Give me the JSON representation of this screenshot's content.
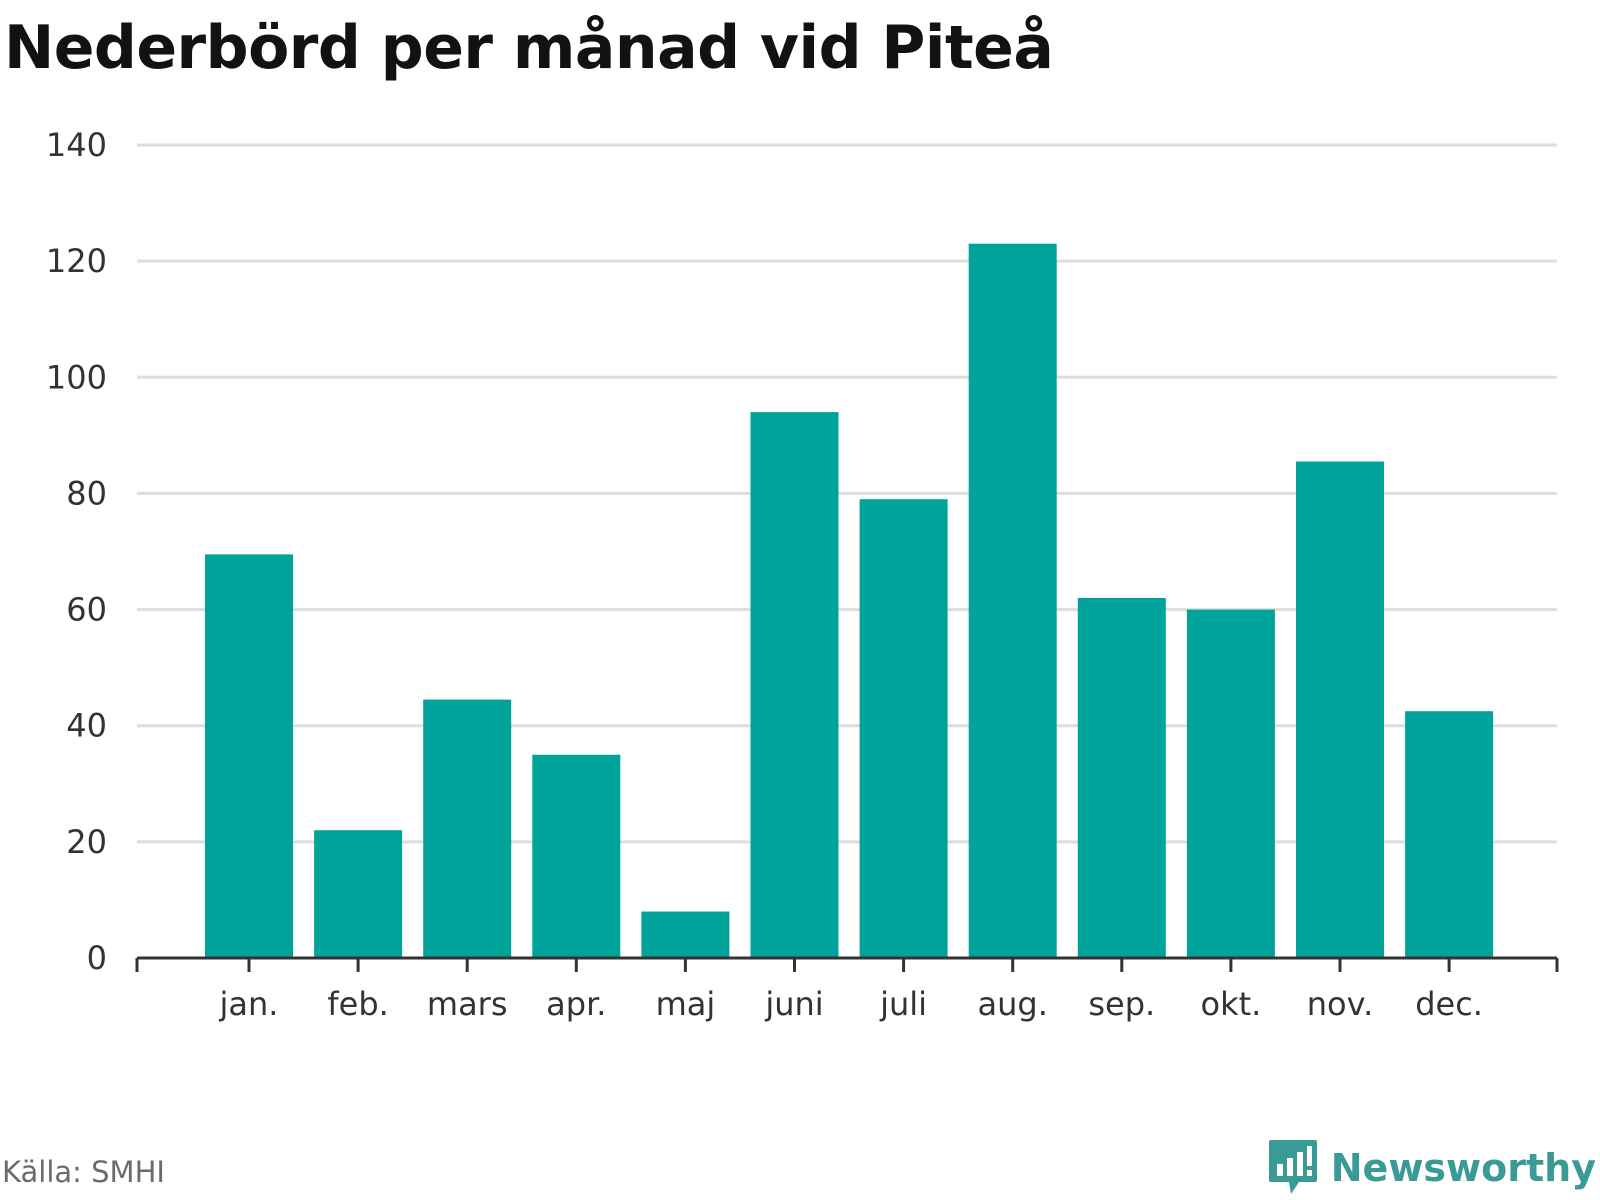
{
  "title": "Nederbörd per månad vid Piteå",
  "source": "Källa: SMHI",
  "brand": {
    "name": "Newsworthy",
    "icon": "newsworthy-logo-icon",
    "color": "#3a9a96"
  },
  "colors": {
    "bar": "#00a39a",
    "grid": "#dddddd",
    "axis": "#333333"
  },
  "chart_data": {
    "type": "bar",
    "title": "Nederbörd per månad vid Piteå",
    "xlabel": "",
    "ylabel": "",
    "categories": [
      "jan.",
      "feb.",
      "mars",
      "apr.",
      "maj",
      "juni",
      "juli",
      "aug.",
      "sep.",
      "okt.",
      "nov.",
      "dec."
    ],
    "values": [
      69.5,
      22,
      44.5,
      35,
      8,
      94,
      79,
      123,
      62,
      60,
      85.5,
      42.5
    ],
    "ylim": [
      0,
      140
    ],
    "yticks": [
      0,
      20,
      40,
      60,
      80,
      100,
      120,
      140
    ],
    "grid": true,
    "legend": "none"
  }
}
